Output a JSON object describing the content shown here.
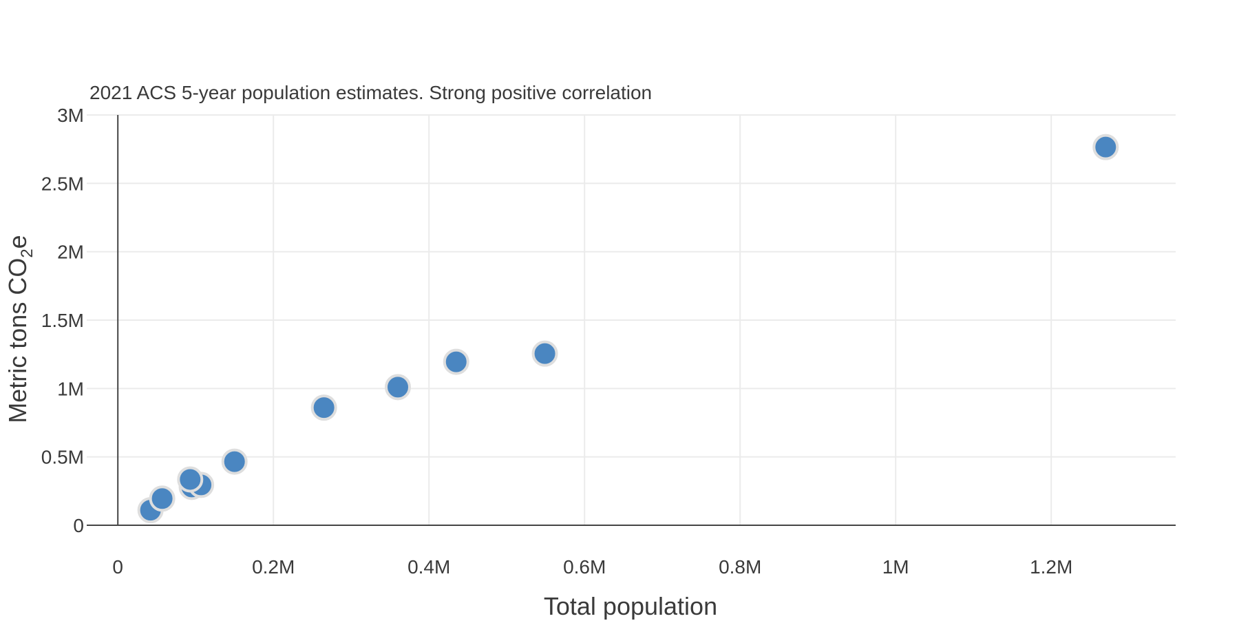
{
  "chart_data": {
    "type": "scatter",
    "subtitle": "2021 ACS 5-year population estimates. Strong positive correlation",
    "xlabel": "Total population",
    "ylabel": "Metric tons CO",
    "ylabel_subscript": "2",
    "ylabel_suffix": "e",
    "xlim": [
      -40000,
      1360000
    ],
    "ylim": [
      0,
      3000000
    ],
    "xticks": [
      {
        "value": 0,
        "label": "0"
      },
      {
        "value": 200000,
        "label": "0.2M"
      },
      {
        "value": 400000,
        "label": "0.4M"
      },
      {
        "value": 600000,
        "label": "0.6M"
      },
      {
        "value": 800000,
        "label": "0.8M"
      },
      {
        "value": 1000000,
        "label": "1M"
      },
      {
        "value": 1200000,
        "label": "1.2M"
      }
    ],
    "yticks": [
      {
        "value": 0,
        "label": "0"
      },
      {
        "value": 500000,
        "label": "0.5M"
      },
      {
        "value": 1000000,
        "label": "1M"
      },
      {
        "value": 1500000,
        "label": "1.5M"
      },
      {
        "value": 2000000,
        "label": "2M"
      },
      {
        "value": 2500000,
        "label": "2.5M"
      },
      {
        "value": 3000000,
        "label": "3M"
      }
    ],
    "grid": true,
    "legend": false,
    "point_color": "#4a86c1",
    "point_outline": "#dedede",
    "points": [
      {
        "x": 42000,
        "y": 110000
      },
      {
        "x": 57000,
        "y": 195000
      },
      {
        "x": 95000,
        "y": 280000
      },
      {
        "x": 107000,
        "y": 295000
      },
      {
        "x": 93000,
        "y": 335000
      },
      {
        "x": 150000,
        "y": 465000
      },
      {
        "x": 265000,
        "y": 860000
      },
      {
        "x": 360000,
        "y": 1010000
      },
      {
        "x": 435000,
        "y": 1195000
      },
      {
        "x": 549000,
        "y": 1255000
      },
      {
        "x": 1270000,
        "y": 2765000
      }
    ]
  }
}
